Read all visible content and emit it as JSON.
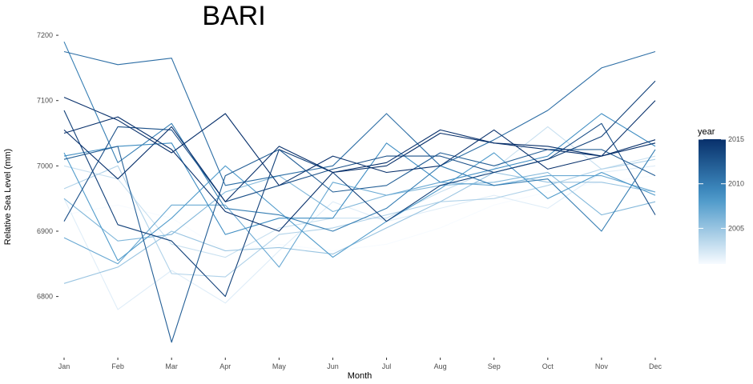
{
  "chart_data": {
    "type": "line",
    "title": "BARI",
    "xlabel": "Month",
    "ylabel": "Relative Sea Level (mm)",
    "categories": [
      "Jan",
      "Feb",
      "Mar",
      "Apr",
      "May",
      "Jun",
      "Jul",
      "Aug",
      "Sep",
      "Oct",
      "Nov",
      "Dec"
    ],
    "yticks": [
      6800,
      6900,
      7000,
      7100,
      7200
    ],
    "ylim": [
      6715,
      7205
    ],
    "grid": false,
    "legend": {
      "title": "year",
      "position": "right",
      "type": "colorbar",
      "range": [
        2001,
        2015
      ],
      "ticks": [
        2005,
        2010,
        2015
      ],
      "color_low": "#f7fbff",
      "color_high": "#08306b"
    },
    "series": [
      {
        "year": 2001,
        "values": [
          6925,
          6940,
          6920,
          6870,
          6880,
          6870,
          6880,
          6905,
          6940,
          6960,
          6975,
          6985
        ]
      },
      {
        "year": 2002,
        "values": [
          6950,
          6780,
          6840,
          6790,
          6870,
          6945,
          6915,
          6935,
          6955,
          6935,
          6990,
          7000
        ]
      },
      {
        "year": 2003,
        "values": [
          7000,
          6980,
          6880,
          6860,
          6905,
          6920,
          6920,
          6960,
          6995,
          7060,
          6995,
          7015
        ]
      },
      {
        "year": 2004,
        "values": [
          6965,
          7000,
          6835,
          6830,
          6895,
          6905,
          6925,
          6945,
          6950,
          6970,
          6995,
          7010
        ]
      },
      {
        "year": 2005,
        "values": [
          6820,
          6845,
          6900,
          6870,
          6875,
          6865,
          6905,
          6945,
          6990,
          6975,
          6975,
          6960
        ]
      },
      {
        "year": 2006,
        "values": [
          6950,
          6885,
          6895,
          6960,
          6985,
          6930,
          6955,
          6970,
          6975,
          6990,
          6925,
          6945
        ]
      },
      {
        "year": 2007,
        "values": [
          6890,
          6850,
          6940,
          6940,
          6845,
          6975,
          6955,
          6975,
          6970,
          6985,
          6985,
          6960
        ]
      },
      {
        "year": 2008,
        "values": [
          7020,
          6855,
          6920,
          7000,
          6930,
          6860,
          6915,
          6965,
          7020,
          6950,
          6990,
          6955
        ]
      },
      {
        "year": 2009,
        "values": [
          7015,
          7030,
          7035,
          6895,
          6920,
          6920,
          7035,
          6975,
          6995,
          7015,
          7080,
          7030
        ]
      },
      {
        "year": 2010,
        "values": [
          7190,
          7005,
          7065,
          6935,
          6925,
          6900,
          6935,
          7000,
          6970,
          6980,
          6900,
          7025
        ]
      },
      {
        "year": 2011,
        "values": [
          7175,
          7155,
          7165,
          6970,
          6985,
          7000,
          7080,
          7000,
          7040,
          7085,
          7150,
          7175
        ]
      },
      {
        "year": 2012,
        "values": [
          7010,
          7030,
          6730,
          6985,
          7025,
          6960,
          6970,
          7020,
          7000,
          7025,
          7025,
          6985
        ]
      },
      {
        "year": 2013,
        "values": [
          6915,
          7060,
          7055,
          6945,
          6970,
          6995,
          7015,
          7015,
          6990,
          7010,
          7065,
          6925
        ]
      },
      {
        "year": 2014,
        "values": [
          7085,
          6910,
          6885,
          6800,
          7025,
          6990,
          6915,
          6970,
          6990,
          7010,
          7045,
          7130
        ]
      },
      {
        "year": 2015,
        "values": [
          7105,
          7070,
          7020,
          7080,
          6970,
          7015,
          6990,
          7000,
          7055,
          6995,
          7015,
          7100
        ]
      },
      {
        "year": 2015,
        "values": [
          7055,
          6980,
          7060,
          6945,
          7030,
          6990,
          7005,
          7055,
          7035,
          7030,
          7015,
          7035
        ]
      },
      {
        "year": 2015,
        "values": [
          7050,
          7075,
          7025,
          6930,
          6900,
          6990,
          7000,
          7050,
          7035,
          7025,
          7015,
          7040
        ]
      }
    ]
  }
}
